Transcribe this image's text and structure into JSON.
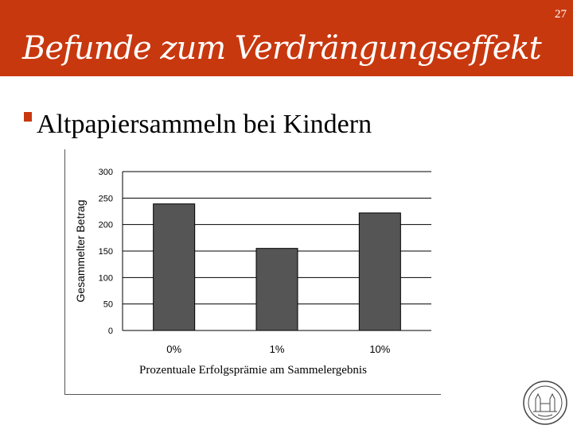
{
  "header": {
    "title": "Befunde zum Verdrängungseffekt",
    "page_number": "27",
    "color": "#c8380f"
  },
  "bullet": {
    "text": "Altpapiersammeln bei Kindern"
  },
  "chart_data": {
    "type": "bar",
    "categories": [
      "0%",
      "1%",
      "10%"
    ],
    "values": [
      239,
      155,
      222
    ],
    "xlabel": "Prozentuale Erfolgsprämie am Sammelergebnis",
    "ylabel": "Gesammelter Betrag",
    "ylim": [
      0,
      300
    ],
    "yticks": [
      0,
      50,
      100,
      150,
      200,
      250,
      300
    ],
    "bar_color": "#555555",
    "grid": true
  },
  "seal_icon": "university-seal-icon"
}
